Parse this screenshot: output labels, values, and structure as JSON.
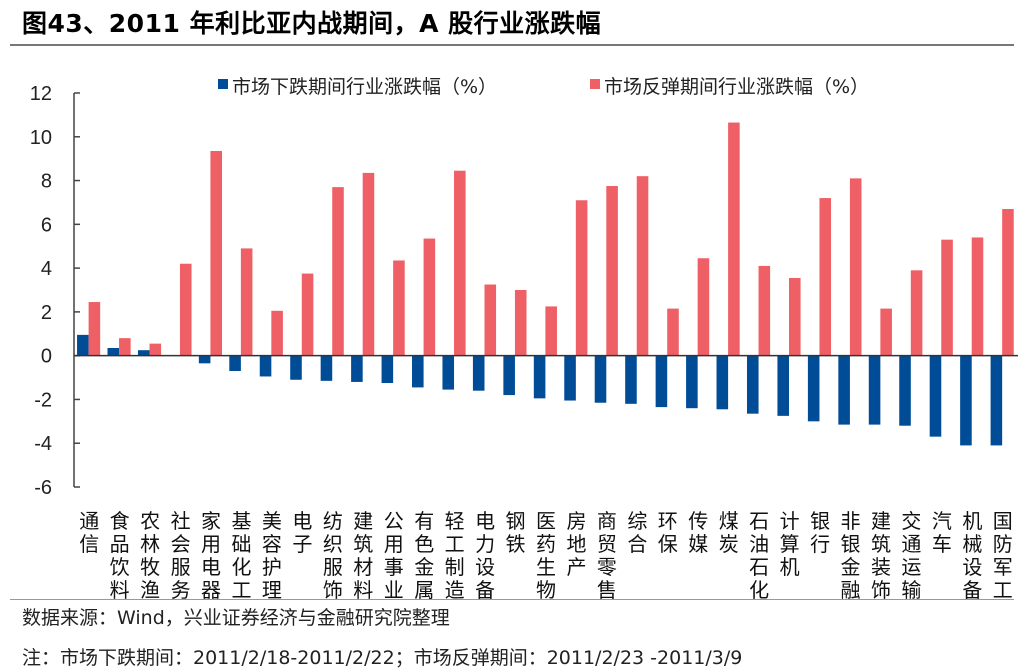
{
  "title": "图43、2011 年利比亚内战期间，A 股行业涨跌幅",
  "source": "数据来源：Wind，兴业证券经济与金融研究院整理",
  "note": "注：市场下跌期间：2011/2/18-2011/2/22；市场反弹期间：2011/2/23 -2011/3/9",
  "chart_data": {
    "type": "bar",
    "title": "",
    "xlabel": "",
    "ylabel": "",
    "ylim": [
      -6,
      12
    ],
    "yticks": [
      -6,
      -4,
      -2,
      0,
      2,
      4,
      6,
      8,
      10,
      12
    ],
    "grid": false,
    "legend_position": "top",
    "categories": [
      "通信",
      "食品饮料",
      "农林牧渔",
      "社会服务",
      "家用电器",
      "基础化工",
      "美容护理",
      "电子",
      "纺织服饰",
      "建筑材料",
      "公用事业",
      "有色金属",
      "轻工制造",
      "电力设备",
      "钢铁",
      "医药生物",
      "房地产",
      "商贸零售",
      "综合",
      "环保",
      "传媒",
      "煤炭",
      "石油石化",
      "计算机",
      "银行",
      "非银金融",
      "建筑装饰",
      "交通运输",
      "汽车",
      "机械设备",
      "国防军工"
    ],
    "series": [
      {
        "name": "市场下跌期间行业涨跌幅（%）",
        "color": "#004C97",
        "values": [
          0.95,
          0.35,
          0.25,
          0,
          -0.35,
          -0.7,
          -0.95,
          -1.1,
          -1.15,
          -1.2,
          -1.25,
          -1.45,
          -1.55,
          -1.6,
          -1.8,
          -1.95,
          -2.05,
          -2.15,
          -2.2,
          -2.35,
          -2.4,
          -2.45,
          -2.65,
          -2.75,
          -3.0,
          -3.15,
          -3.15,
          -3.2,
          -3.7,
          -4.1,
          -4.1
        ]
      },
      {
        "name": "市场反弹期间行业涨跌幅（%）",
        "color": "#EE6065",
        "values": [
          2.45,
          0.8,
          0.55,
          4.2,
          9.35,
          4.9,
          2.05,
          3.75,
          7.7,
          8.35,
          4.35,
          5.35,
          8.45,
          3.25,
          3.0,
          2.25,
          7.1,
          7.75,
          8.2,
          2.15,
          4.45,
          10.65,
          4.1,
          3.55,
          7.2,
          8.1,
          2.15,
          3.9,
          5.3,
          5.4,
          6.7
        ]
      }
    ]
  }
}
